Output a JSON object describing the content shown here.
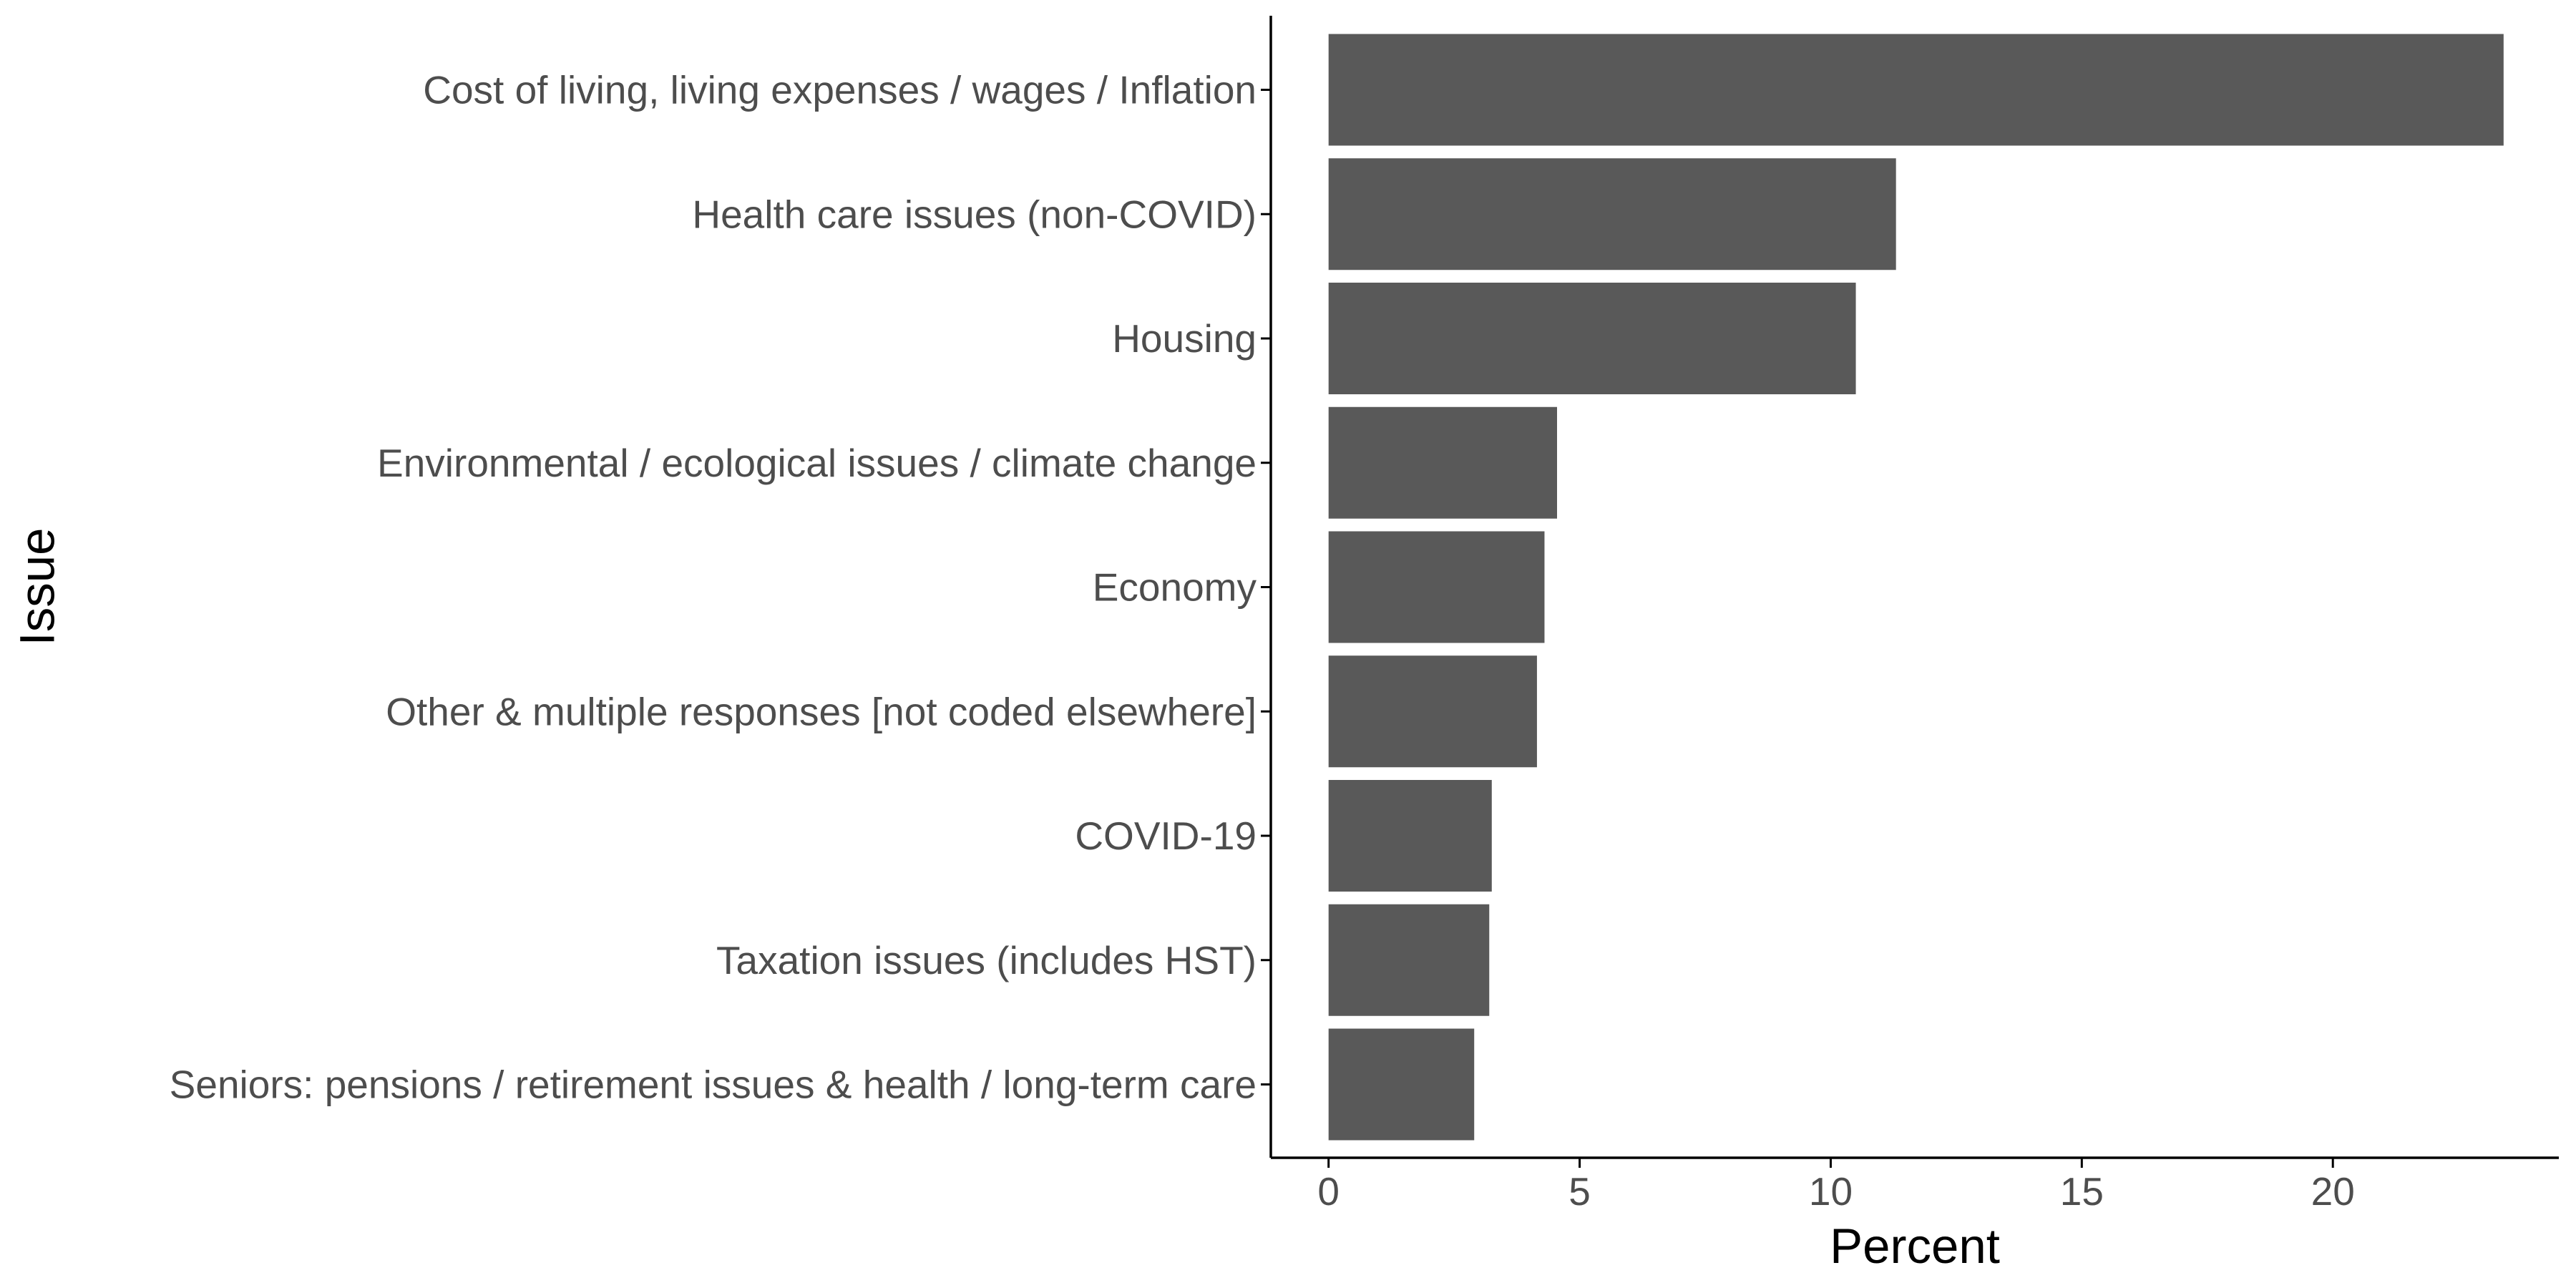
{
  "chart_data": {
    "type": "bar",
    "orientation": "horizontal",
    "title": "",
    "xlabel": "Percent",
    "ylabel": "Issue",
    "categories": [
      "Cost of living, living expenses / wages / Inflation",
      "Health care issues (non-COVID)",
      "Housing",
      "Environmental / ecological issues / climate change",
      "Economy",
      "Other & multiple responses [not coded elsewhere]",
      "COVID-19",
      "Taxation issues (includes HST)",
      "Seniors: pensions / retirement issues & health / long-term care"
    ],
    "values": [
      23.4,
      11.3,
      10.5,
      4.55,
      4.3,
      4.15,
      3.25,
      3.2,
      2.9
    ],
    "xlim": [
      -1.15,
      24.5
    ],
    "x_ticks": [
      0,
      5,
      10,
      15,
      20
    ],
    "x_tick_labels": [
      "0",
      "5",
      "10",
      "15",
      "20"
    ],
    "grid": false,
    "legend": "none",
    "bar_color": "#595959",
    "axis_color": "#000000",
    "label_color": "#4d4d4d"
  }
}
